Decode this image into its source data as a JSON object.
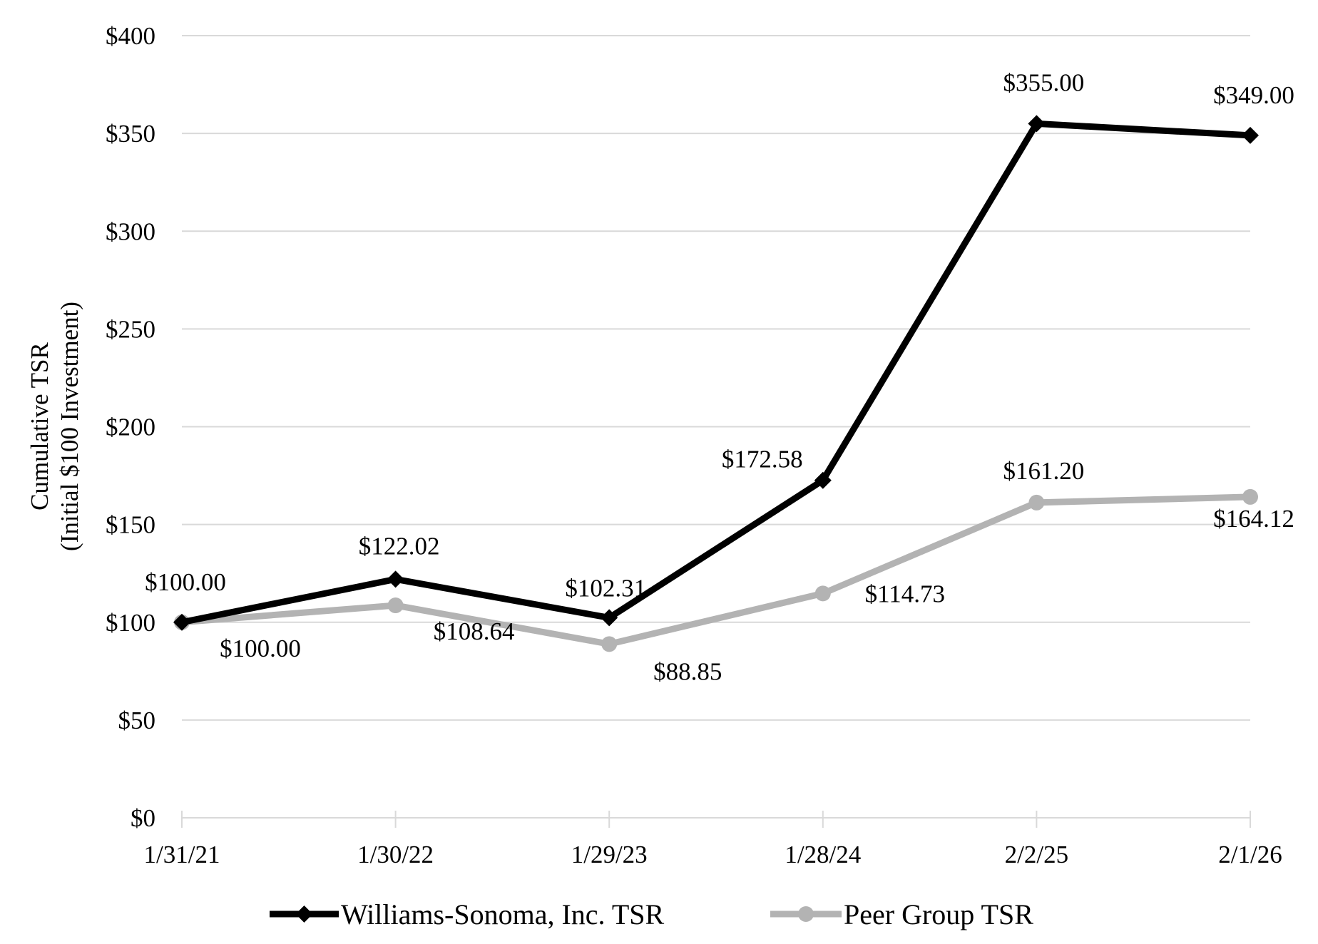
{
  "chart_data": {
    "type": "line",
    "title": "",
    "ylabel_lines": [
      "Cumulative TSR",
      "(Initial $100 Investment)"
    ],
    "xlabel": "",
    "categories": [
      "1/31/21",
      "1/30/22",
      "1/29/23",
      "1/28/24",
      "2/2/25",
      "2/1/26"
    ],
    "ylim": [
      0,
      400
    ],
    "yticks": [
      0,
      50,
      100,
      150,
      200,
      250,
      300,
      350,
      400
    ],
    "ytick_labels": [
      "$0",
      "$50",
      "$100",
      "$150",
      "$200",
      "$250",
      "$300",
      "$350",
      "$400"
    ],
    "grid": "horizontal",
    "legend": "bottom",
    "series": [
      {
        "name": "Williams-Sonoma, Inc. TSR",
        "values": [
          100.0,
          122.02,
          102.31,
          172.58,
          355.0,
          349.0
        ],
        "labels": [
          "$100.00",
          "$122.02",
          "$102.31",
          "$172.58",
          "$355.00",
          "$349.00"
        ],
        "label_position": "above",
        "color": "#000000",
        "marker": "diamond"
      },
      {
        "name": "Peer Group TSR",
        "values": [
          100.0,
          108.64,
          88.85,
          114.73,
          161.2,
          164.12
        ],
        "labels": [
          "$100.00",
          "$108.64",
          "$88.85",
          "$114.73",
          "$161.20",
          "$164.12"
        ],
        "label_position": "below",
        "color": "#b3b3b3",
        "marker": "circle"
      }
    ]
  }
}
